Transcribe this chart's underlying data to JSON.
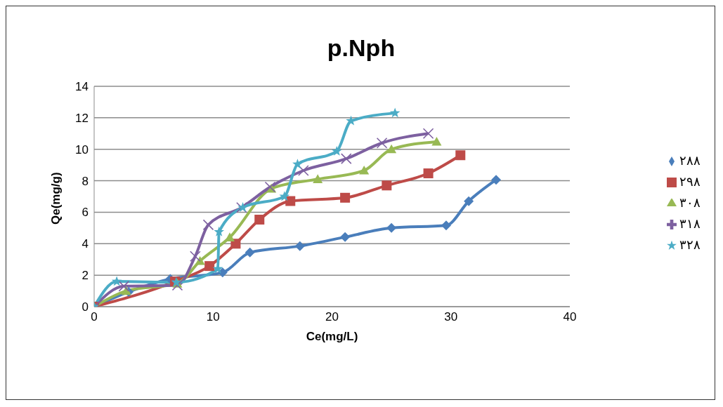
{
  "chart_data": {
    "type": "line",
    "title": "p.Nph",
    "xlabel": "Ce(mg/L)",
    "ylabel": "Qe(mg/g)",
    "xlim": [
      0,
      40
    ],
    "xticks": [
      0,
      10,
      20,
      30,
      40
    ],
    "ylim": [
      0,
      14
    ],
    "yticks": [
      0,
      2,
      4,
      6,
      8,
      10,
      12,
      14
    ],
    "grid": "y",
    "legend": "right",
    "line_style": "solid",
    "series": [
      {
        "name": "٢٨٨",
        "color": "#4a7ebb",
        "marker": "diamond",
        "x": [
          0,
          2.9,
          6.4,
          10.8,
          13.1,
          17.3,
          21.1,
          25.0,
          29.6,
          31.5,
          33.8
        ],
        "values": [
          0,
          0.94,
          1.76,
          2.17,
          3.44,
          3.85,
          4.42,
          5.0,
          5.16,
          6.7,
          8.06
        ]
      },
      {
        "name": "٢٩٨",
        "color": "#be4b48",
        "marker": "square",
        "x": [
          0,
          6.8,
          9.7,
          11.9,
          13.9,
          16.5,
          21.1,
          24.6,
          28.1,
          30.8
        ],
        "values": [
          0,
          1.6,
          2.58,
          4.0,
          5.53,
          6.71,
          6.92,
          7.7,
          8.47,
          9.62
        ]
      },
      {
        "name": "٣٠٨",
        "color": "#98b954",
        "marker": "triangle",
        "x": [
          0,
          2.7,
          7.0,
          8.9,
          11.4,
          14.9,
          18.8,
          22.7,
          25.0,
          28.8
        ],
        "values": [
          0,
          1.0,
          1.47,
          2.9,
          4.4,
          7.5,
          8.1,
          8.65,
          10.0,
          10.48
        ]
      },
      {
        "name": "٣١٨",
        "color": "#7d60a0",
        "marker": "cross",
        "x": [
          0,
          2.5,
          7.0,
          8.5,
          9.6,
          12.4,
          14.8,
          17.6,
          21.2,
          24.2,
          28.1
        ],
        "values": [
          0,
          1.3,
          1.36,
          3.2,
          5.2,
          6.3,
          7.6,
          8.65,
          9.4,
          10.4,
          11.0
        ]
      },
      {
        "name": "٣٢٨",
        "color": "#4bacc6",
        "marker": "star",
        "x": [
          0,
          1.9,
          6.9,
          10.4,
          10.5,
          12.5,
          16.0,
          17.1,
          20.4,
          21.6,
          25.3
        ],
        "values": [
          0,
          1.6,
          1.55,
          2.4,
          4.75,
          6.3,
          7.0,
          9.05,
          9.87,
          11.8,
          12.3
        ]
      }
    ]
  }
}
